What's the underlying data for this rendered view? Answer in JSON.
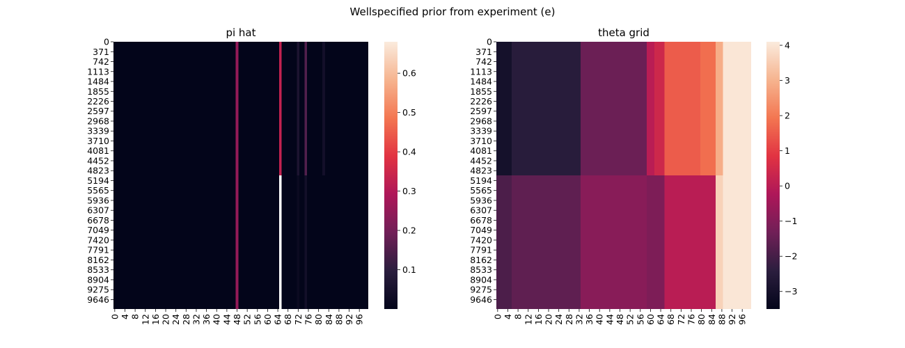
{
  "figure": {
    "suptitle": "Wellspecified prior from experiment (e)"
  },
  "colormap_stops": [
    "#03051a",
    "#2b1e3e",
    "#701f57",
    "#ae1759",
    "#e13342",
    "#f37651",
    "#f6b48f",
    "#faebdd"
  ],
  "chart_data": [
    {
      "type": "heatmap",
      "title": "pi hat",
      "y_tick_labels": [
        "0",
        "371",
        "742",
        "1113",
        "1484",
        "1855",
        "2226",
        "2597",
        "2968",
        "3339",
        "3710",
        "4081",
        "4452",
        "4823",
        "5194",
        "5565",
        "5936",
        "6307",
        "6678",
        "7049",
        "7420",
        "7791",
        "8162",
        "8533",
        "8904",
        "9275",
        "9646"
      ],
      "x_tick_labels": [
        "0",
        "4",
        "8",
        "12",
        "16",
        "20",
        "24",
        "28",
        "32",
        "36",
        "40",
        "44",
        "48",
        "52",
        "56",
        "60",
        "64",
        "68",
        "72",
        "76",
        "80",
        "84",
        "88",
        "92",
        "96"
      ],
      "n_rows": 10000,
      "n_cols": 100,
      "vmin": 0.0,
      "vmax": 0.68,
      "colorbar_ticks": [
        0.1,
        0.2,
        0.3,
        0.4,
        0.5,
        0.6
      ],
      "colorbar_tick_labels": [
        "0.1",
        "0.2",
        "0.3",
        "0.4",
        "0.5",
        "0.6"
      ],
      "background_value": 0.0,
      "regions": [
        {
          "col_start": 48,
          "col_end": 49,
          "row_start": 0,
          "row_end": 10000,
          "value": 0.25
        },
        {
          "col_start": 65,
          "col_end": 66,
          "row_start": 0,
          "row_end": 5000,
          "value": 0.33
        },
        {
          "col_start": 65,
          "col_end": 66,
          "row_start": 5000,
          "row_end": 10000,
          "value": null
        },
        {
          "col_start": 72,
          "col_end": 73,
          "row_start": 0,
          "row_end": 5000,
          "value": 0.06
        },
        {
          "col_start": 75,
          "col_end": 76,
          "row_start": 0,
          "row_end": 5000,
          "value": 0.15
        },
        {
          "col_start": 82,
          "col_end": 83,
          "row_start": 0,
          "row_end": 5000,
          "value": 0.04
        },
        {
          "col_start": 72,
          "col_end": 73,
          "row_start": 5000,
          "row_end": 10000,
          "value": 0.02
        },
        {
          "col_start": 75,
          "col_end": 76,
          "row_start": 5000,
          "row_end": 10000,
          "value": 0.04
        }
      ]
    },
    {
      "type": "heatmap",
      "title": "theta grid",
      "y_tick_labels": [
        "0",
        "371",
        "742",
        "1113",
        "1484",
        "1855",
        "2226",
        "2597",
        "2968",
        "3339",
        "3710",
        "4081",
        "4452",
        "4823",
        "5194",
        "5565",
        "5936",
        "6307",
        "6678",
        "7049",
        "7420",
        "7791",
        "8162",
        "8533",
        "8904",
        "9275",
        "9646"
      ],
      "x_tick_labels": [
        "0",
        "4",
        "8",
        "12",
        "16",
        "20",
        "24",
        "28",
        "32",
        "36",
        "40",
        "44",
        "48",
        "52",
        "56",
        "60",
        "64",
        "68",
        "72",
        "76",
        "80",
        "84",
        "88",
        "92",
        "96"
      ],
      "n_rows": 10000,
      "n_cols": 100,
      "vmin": -3.5,
      "vmax": 4.1,
      "colorbar_ticks": [
        -3,
        -2,
        -1,
        0,
        1,
        2,
        3,
        4
      ],
      "colorbar_tick_labels": [
        "−3",
        "−2",
        "−1",
        "0",
        "1",
        "2",
        "3",
        "4"
      ],
      "background_value": -2.5,
      "regions": [
        {
          "col_start": 0,
          "col_end": 6,
          "row_start": 0,
          "row_end": 5000,
          "value": -3.0
        },
        {
          "col_start": 6,
          "col_end": 33,
          "row_start": 0,
          "row_end": 5000,
          "value": -2.5
        },
        {
          "col_start": 33,
          "col_end": 59,
          "row_start": 0,
          "row_end": 5000,
          "value": -1.4
        },
        {
          "col_start": 59,
          "col_end": 62,
          "row_start": 0,
          "row_end": 5000,
          "value": 0.0
        },
        {
          "col_start": 62,
          "col_end": 66,
          "row_start": 0,
          "row_end": 5000,
          "value": 0.4
        },
        {
          "col_start": 66,
          "col_end": 80,
          "row_start": 0,
          "row_end": 5000,
          "value": 1.5
        },
        {
          "col_start": 80,
          "col_end": 86,
          "row_start": 0,
          "row_end": 5000,
          "value": 1.8
        },
        {
          "col_start": 86,
          "col_end": 89,
          "row_start": 0,
          "row_end": 5000,
          "value": 2.9
        },
        {
          "col_start": 89,
          "col_end": 100,
          "row_start": 0,
          "row_end": 5000,
          "value": 4.0
        },
        {
          "col_start": 0,
          "col_end": 6,
          "row_start": 5000,
          "row_end": 10000,
          "value": -1.9
        },
        {
          "col_start": 6,
          "col_end": 33,
          "row_start": 5000,
          "row_end": 10000,
          "value": -1.6
        },
        {
          "col_start": 33,
          "col_end": 59,
          "row_start": 5000,
          "row_end": 10000,
          "value": -0.9
        },
        {
          "col_start": 59,
          "col_end": 66,
          "row_start": 5000,
          "row_end": 10000,
          "value": -1.1
        },
        {
          "col_start": 66,
          "col_end": 86,
          "row_start": 5000,
          "row_end": 10000,
          "value": 0.0
        },
        {
          "col_start": 86,
          "col_end": 89,
          "row_start": 5000,
          "row_end": 10000,
          "value": 3.6
        },
        {
          "col_start": 89,
          "col_end": 100,
          "row_start": 5000,
          "row_end": 10000,
          "value": 4.0
        }
      ]
    }
  ]
}
